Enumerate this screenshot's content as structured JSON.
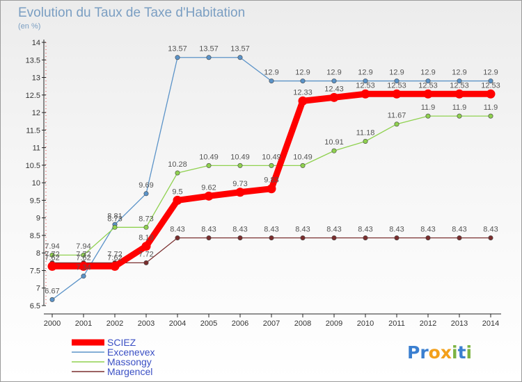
{
  "title": "Evolution du Taux de Taxe d'Habitation",
  "subtitle": "(en %)",
  "logo": {
    "text": "Proxiti",
    "letters": [
      {
        "ch": "P",
        "color": "#3a7fd0"
      },
      {
        "ch": "r",
        "color": "#3a7fd0"
      },
      {
        "ch": "o",
        "color": "#f3a01b"
      },
      {
        "ch": "x",
        "color": "#f3a01b"
      },
      {
        "ch": "i",
        "color": "#7cb342"
      },
      {
        "ch": "t",
        "color": "#3a7fd0"
      },
      {
        "ch": "i",
        "color": "#7cb342"
      }
    ]
  },
  "chart_data": {
    "type": "line",
    "title": "Evolution du Taux de Taxe d'Habitation",
    "ylabel": "(en %)",
    "xlabel": "",
    "x": [
      2000,
      2001,
      2002,
      2003,
      2004,
      2005,
      2006,
      2007,
      2008,
      2009,
      2010,
      2011,
      2012,
      2013,
      2014
    ],
    "ylim": [
      6.5,
      14
    ],
    "yticks": [
      6.5,
      7,
      7.5,
      8,
      8.5,
      9,
      9.5,
      10,
      10.5,
      11,
      11.5,
      12,
      12.5,
      13,
      13.5,
      14
    ],
    "grid": false,
    "legend_position": "bottom-left",
    "series": [
      {
        "name": "SCIEZ",
        "color": "#ff0000",
        "emphasis": true,
        "values": [
          7.62,
          7.62,
          7.62,
          8.19,
          9.5,
          9.62,
          9.73,
          9.83,
          12.33,
          12.43,
          12.53,
          12.53,
          12.53,
          12.53,
          12.53
        ],
        "labels": [
          "7.62",
          "7.62",
          "7.62",
          "8.19",
          "9.5",
          "9.62",
          "9.73",
          "9.83",
          "12.33",
          "12.43",
          "12.53",
          "12.53",
          "12.53",
          "12.53",
          "12.53"
        ]
      },
      {
        "name": "Excenevex",
        "color": "#5b93c8",
        "emphasis": false,
        "values": [
          6.67,
          7.34,
          8.81,
          9.69,
          13.57,
          13.57,
          13.57,
          12.9,
          12.9,
          12.9,
          12.9,
          12.9,
          12.9,
          12.9,
          12.9
        ],
        "labels": [
          "6.67",
          "7.34",
          "8.81",
          "9.69",
          "13.57",
          "13.57",
          "13.57",
          "12.9",
          "12.9",
          "12.9",
          "12.9",
          "12.9",
          "12.9",
          "12.9",
          "12.9"
        ]
      },
      {
        "name": "Massongy",
        "color": "#8fd14f",
        "emphasis": false,
        "values": [
          7.94,
          7.94,
          8.73,
          8.73,
          10.28,
          10.49,
          10.49,
          10.49,
          10.49,
          10.91,
          11.18,
          11.67,
          11.9,
          11.9,
          11.9
        ],
        "labels": [
          "7.94",
          "7.94",
          "8.73",
          "8.73",
          "10.28",
          "10.49",
          "10.49",
          "10.49",
          "10.49",
          "10.91",
          "11.18",
          "11.67",
          "11.9",
          "11.9",
          "11.9"
        ]
      },
      {
        "name": "Margencel",
        "color": "#7a2e2e",
        "emphasis": false,
        "values": [
          7.72,
          7.72,
          7.72,
          7.72,
          8.43,
          8.43,
          8.43,
          8.43,
          8.43,
          8.43,
          8.43,
          8.43,
          8.43,
          8.43,
          8.43
        ],
        "labels": [
          "7.72",
          "7.72",
          "7.72",
          "7.72",
          "8.43",
          "8.43",
          "8.43",
          "8.43",
          "8.43",
          "8.43",
          "8.43",
          "8.43",
          "8.43",
          "8.43",
          "8.43"
        ]
      }
    ]
  }
}
